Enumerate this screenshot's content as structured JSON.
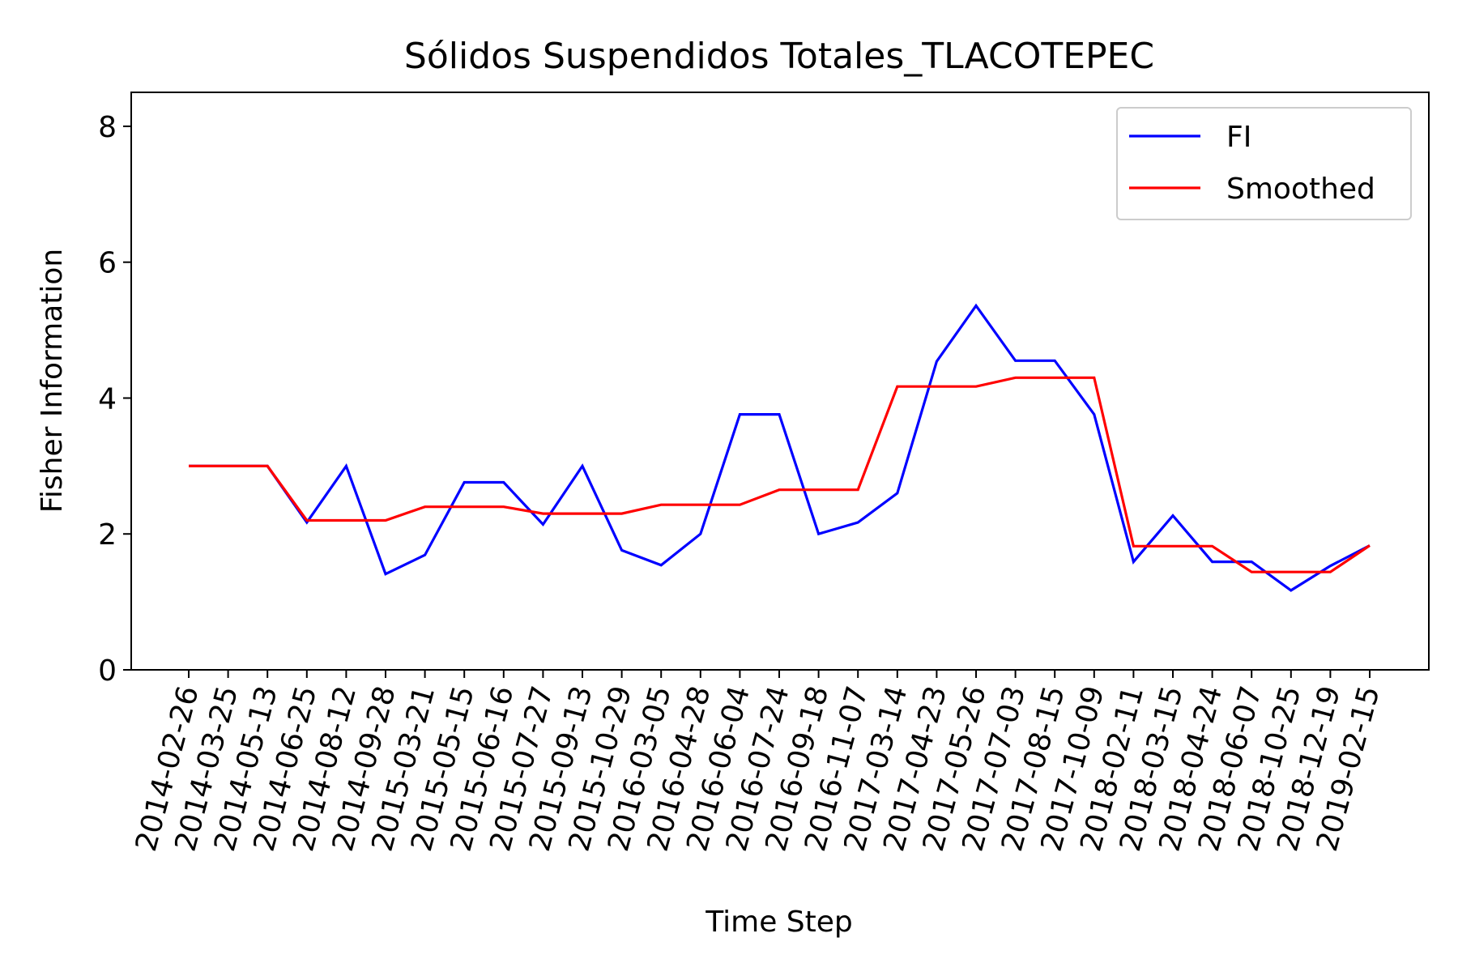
{
  "chart_data": {
    "type": "line",
    "title": "Sólidos Suspendidos Totales_TLACOTEPEC",
    "xlabel": "Time Step",
    "ylabel": "Fisher Information",
    "ylim": [
      0,
      8.5
    ],
    "yticks": [
      0,
      2,
      4,
      6,
      8
    ],
    "grid": false,
    "legend_position": "top-right",
    "categories": [
      "2014-02-26",
      "2014-03-25",
      "2014-05-13",
      "2014-06-25",
      "2014-08-12",
      "2014-09-28",
      "2015-03-21",
      "2015-05-15",
      "2015-06-16",
      "2015-07-27",
      "2015-09-13",
      "2015-10-29",
      "2016-03-05",
      "2016-04-28",
      "2016-06-04",
      "2016-07-24",
      "2016-09-18",
      "2016-11-07",
      "2017-03-14",
      "2017-04-23",
      "2017-05-26",
      "2017-07-03",
      "2017-08-15",
      "2017-10-09",
      "2018-02-11",
      "2018-03-15",
      "2018-04-24",
      "2018-06-07",
      "2018-10-25",
      "2018-12-19",
      "2019-02-15"
    ],
    "series": [
      {
        "name": "FI",
        "color": "#0000ff",
        "values": [
          3.0,
          3.0,
          3.0,
          2.17,
          3.0,
          1.41,
          1.69,
          2.76,
          2.76,
          2.14,
          3.0,
          1.76,
          1.54,
          2.0,
          3.76,
          3.76,
          2.0,
          2.17,
          2.6,
          4.54,
          5.36,
          4.55,
          4.55,
          3.76,
          1.59,
          2.27,
          1.59,
          1.59,
          1.17,
          1.53,
          1.83
        ]
      },
      {
        "name": "Smoothed",
        "color": "#ff0000",
        "values": [
          3.0,
          3.0,
          3.0,
          2.2,
          2.2,
          2.2,
          2.4,
          2.4,
          2.4,
          2.3,
          2.3,
          2.3,
          2.43,
          2.43,
          2.43,
          2.65,
          2.65,
          2.65,
          4.17,
          4.17,
          4.17,
          4.3,
          4.3,
          4.3,
          1.82,
          1.82,
          1.82,
          1.44,
          1.44,
          1.44,
          1.83
        ]
      }
    ]
  }
}
